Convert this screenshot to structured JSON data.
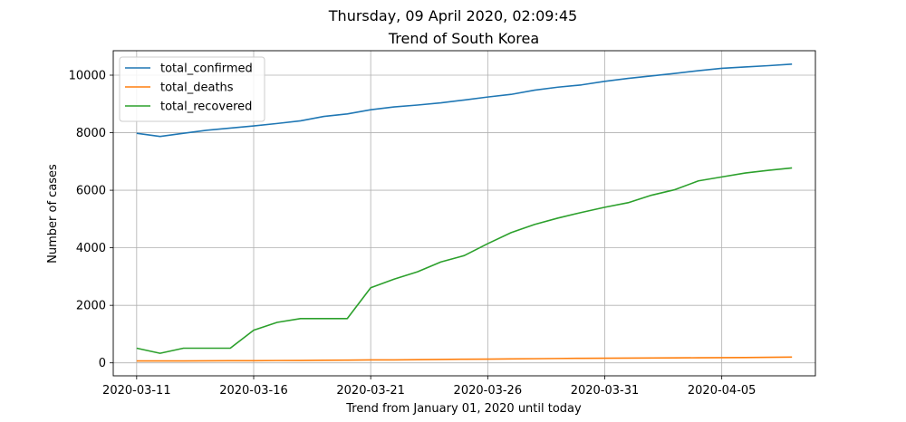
{
  "chart_data": {
    "type": "line",
    "suptitle": "Thursday, 09 April 2020, 02:09:45",
    "title": "Trend of South Korea",
    "xlabel": "Trend from January 01, 2020 until today",
    "ylabel": "Number of cases",
    "x": [
      "2020-03-11",
      "2020-03-12",
      "2020-03-13",
      "2020-03-14",
      "2020-03-15",
      "2020-03-16",
      "2020-03-17",
      "2020-03-18",
      "2020-03-19",
      "2020-03-20",
      "2020-03-21",
      "2020-03-22",
      "2020-03-23",
      "2020-03-24",
      "2020-03-25",
      "2020-03-26",
      "2020-03-27",
      "2020-03-28",
      "2020-03-29",
      "2020-03-30",
      "2020-03-31",
      "2020-04-01",
      "2020-04-02",
      "2020-04-03",
      "2020-04-04",
      "2020-04-05",
      "2020-04-06",
      "2020-04-07",
      "2020-04-08"
    ],
    "xlim": [
      "2020-03-10",
      "2020-04-09"
    ],
    "x_ticks": [
      "2020-03-11",
      "2020-03-16",
      "2020-03-21",
      "2020-03-26",
      "2020-03-31",
      "2020-04-05"
    ],
    "ylim": [
      -450,
      10850
    ],
    "y_ticks": [
      0,
      2000,
      4000,
      6000,
      8000,
      10000
    ],
    "grid": true,
    "legend_position": "top-left",
    "series": [
      {
        "name": "total_confirmed",
        "color": "#1f77b4",
        "values": [
          7979,
          7869,
          7979,
          8086,
          8162,
          8236,
          8320,
          8413,
          8565,
          8652,
          8799,
          8897,
          8961,
          9037,
          9137,
          9241,
          9332,
          9478,
          9583,
          9661,
          9786,
          9887,
          9976,
          10062,
          10156,
          10237,
          10284,
          10331,
          10384
        ]
      },
      {
        "name": "total_deaths",
        "color": "#ff7f0e",
        "values": [
          66,
          66,
          67,
          72,
          75,
          75,
          81,
          84,
          91,
          94,
          102,
          104,
          111,
          120,
          126,
          131,
          139,
          144,
          152,
          158,
          162,
          165,
          169,
          174,
          177,
          183,
          186,
          192,
          200
        ]
      },
      {
        "name": "total_recovered",
        "color": "#2ca02c",
        "values": [
          510,
          333,
          510,
          510,
          510,
          1137,
          1407,
          1540,
          1540,
          1540,
          2612,
          2909,
          3166,
          3507,
          3730,
          4144,
          4528,
          4811,
          5033,
          5228,
          5408,
          5567,
          5828,
          6021,
          6325,
          6463,
          6598,
          6694,
          6776
        ]
      }
    ]
  }
}
